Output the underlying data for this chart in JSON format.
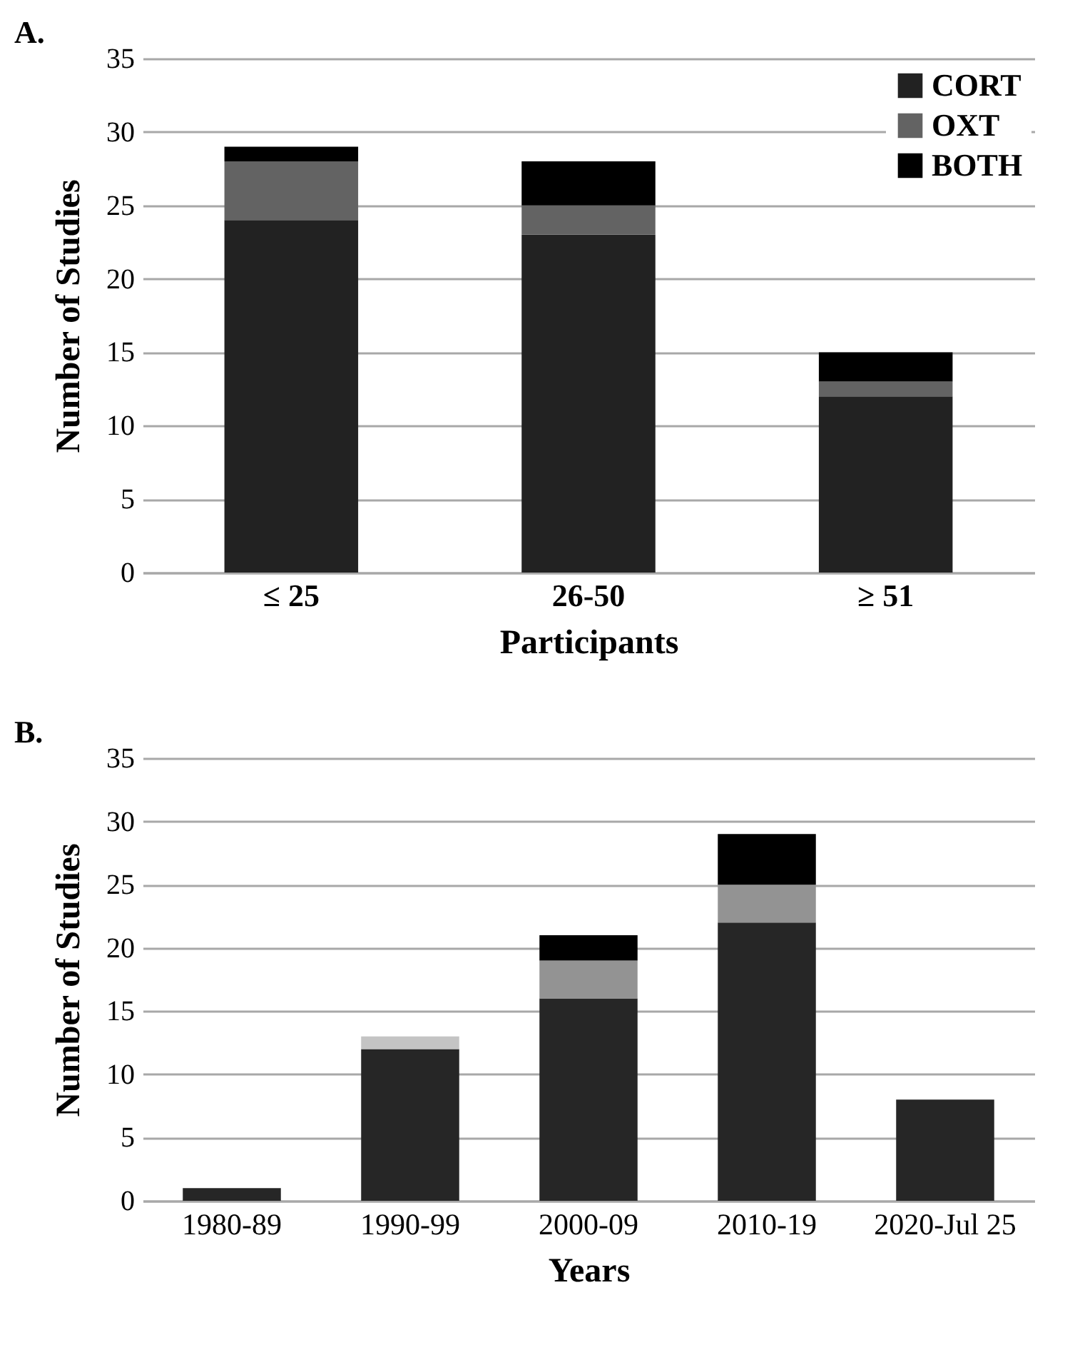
{
  "chart_data": [
    {
      "type": "bar",
      "title": "A.",
      "xlabel": "Participants",
      "ylabel": "Number of Studies",
      "categories": [
        "≤ 25",
        "26-50",
        "≥ 51"
      ],
      "stacked": true,
      "series": [
        {
          "name": "CORT",
          "color": "#222222",
          "values": [
            24,
            23,
            12
          ]
        },
        {
          "name": "OXT",
          "color": "#636363",
          "values": [
            4,
            2,
            1
          ]
        },
        {
          "name": "BOTH",
          "color": "#000000",
          "values": [
            1,
            3,
            2
          ]
        }
      ],
      "ylim": [
        0,
        35
      ],
      "yticks": [
        0,
        5,
        10,
        15,
        20,
        25,
        30,
        35
      ],
      "grid": "y",
      "legend": "top right"
    },
    {
      "type": "bar",
      "title": "B.",
      "xlabel": "Years",
      "ylabel": "Number of Studies",
      "categories": [
        "1980-89",
        "1990-99",
        "2000-09",
        "2010-19",
        "2020-Jul 25"
      ],
      "stacked": true,
      "series": [
        {
          "color": "#262626",
          "values": [
            1,
            12,
            16,
            22,
            8
          ]
        },
        {
          "color": "#c4c4c4",
          "values": [
            null,
            1,
            null,
            null,
            null
          ]
        },
        {
          "color": "#939393",
          "values": [
            null,
            null,
            3,
            3,
            null
          ]
        },
        {
          "color": "#000000",
          "values": [
            null,
            null,
            2,
            4,
            null
          ]
        }
      ],
      "ylim": [
        0,
        35
      ],
      "yticks": [
        0,
        5,
        10,
        15,
        20,
        25,
        30,
        35
      ],
      "grid": "y"
    }
  ]
}
